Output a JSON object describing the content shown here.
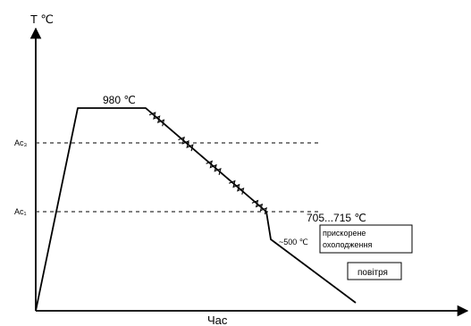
{
  "axes": {
    "y_label": "T ℃",
    "x_label": "Час"
  },
  "levels": {
    "ac3": "Ac₃",
    "ac1": "Ac₁"
  },
  "annotations": {
    "top_temp": "980 ℃",
    "range_temp": "705...715 ℃",
    "bend_temp": "~500 ℃",
    "accel_line1": "прискорене",
    "accel_line2": "охолодження",
    "air": "повітря"
  },
  "colors": {
    "line": "#000000",
    "dashed": "#333333"
  }
}
